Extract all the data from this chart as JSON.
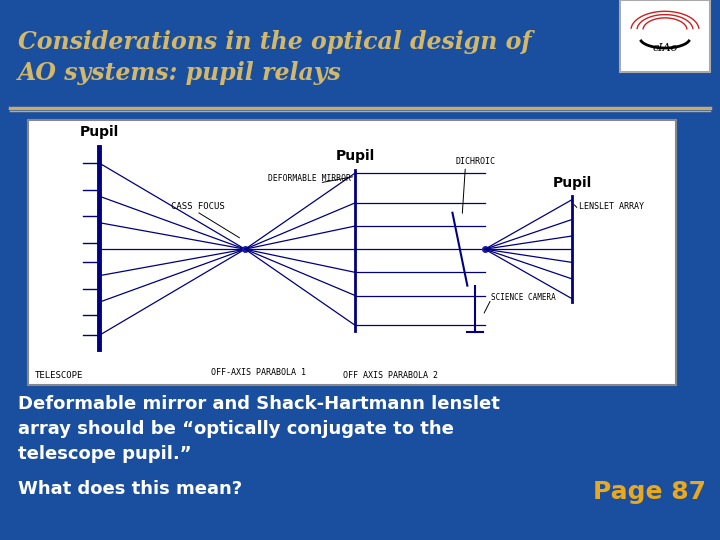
{
  "bg_color": "#1a4fa0",
  "title_text": "Considerations in the optical design of\nAO systems: pupil relays",
  "title_color": "#d4b86a",
  "title_fontsize": 17,
  "separator_color": "#c8aa6e",
  "diagram_bg": "#f8f8f8",
  "body_line1": "Deformable mirror and Shack-Hartmann lenslet",
  "body_line2": "array should be “optically conjugate to the",
  "body_line3": "telescope pupil.”",
  "body_color": "#ffffff",
  "body_fontsize": 13,
  "question_text": "What does this mean?",
  "question_color": "#ffffff",
  "question_fontsize": 13,
  "page_text": "Page 87",
  "page_color": "#e8a820",
  "page_fontsize": 18,
  "dc": "#000080",
  "dlc": "#000080"
}
